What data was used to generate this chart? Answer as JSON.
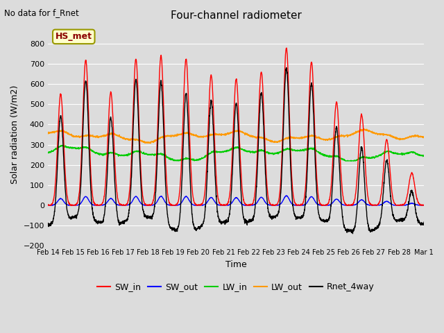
{
  "title": "Four-channel radiometer",
  "top_left_text": "No data for f_Rnet",
  "ylabel": "Solar radiation (W/m2)",
  "xlabel": "Time",
  "annotation_label": "HS_met",
  "ylim": [
    -200,
    900
  ],
  "yticks": [
    -200,
    -100,
    0,
    100,
    200,
    300,
    400,
    500,
    600,
    700,
    800
  ],
  "date_labels": [
    "Feb 14",
    "Feb 15",
    "Feb 16",
    "Feb 17",
    "Feb 18",
    "Feb 19",
    "Feb 20",
    "Feb 21",
    "Feb 22",
    "Feb 23",
    "Feb 24",
    "Feb 25",
    "Feb 26",
    "Feb 27",
    "Feb 28",
    "Mar 1"
  ],
  "background_color": "#dcdcdc",
  "plot_bg_color": "#dcdcdc",
  "grid_color": "white",
  "sw_peaks": [
    550,
    720,
    560,
    725,
    740,
    725,
    645,
    625,
    660,
    780,
    710,
    510,
    450,
    325,
    160
  ],
  "sw_out_ratio": 0.06,
  "lw_in_base": 250,
  "lw_out_base": 335,
  "night_rnet": -100,
  "line_width": 1.0,
  "legend_colors": {
    "SW_in": "#ff0000",
    "SW_out": "#0000ff",
    "LW_in": "#00cc00",
    "LW_out": "#ff9900",
    "Rnet_4way": "#000000"
  }
}
